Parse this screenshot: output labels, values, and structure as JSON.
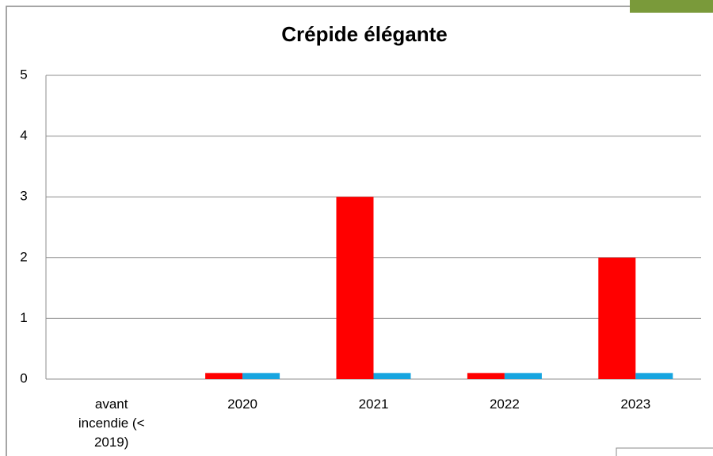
{
  "chart_data": {
    "type": "bar",
    "title": "Crépide élégante",
    "categories": [
      "avant incendie (< 2019)",
      "2020",
      "2021",
      "2022",
      "2023"
    ],
    "series": [
      {
        "color": "#ff0000",
        "values": [
          0,
          0.1,
          3,
          0.1,
          2
        ]
      },
      {
        "color": "#17a5e0",
        "values": [
          0,
          0.1,
          0.1,
          0.1,
          0.1
        ]
      }
    ],
    "ylim": [
      0,
      5
    ],
    "yticks": [
      0,
      1,
      2,
      3,
      4,
      5
    ],
    "grid": true
  }
}
